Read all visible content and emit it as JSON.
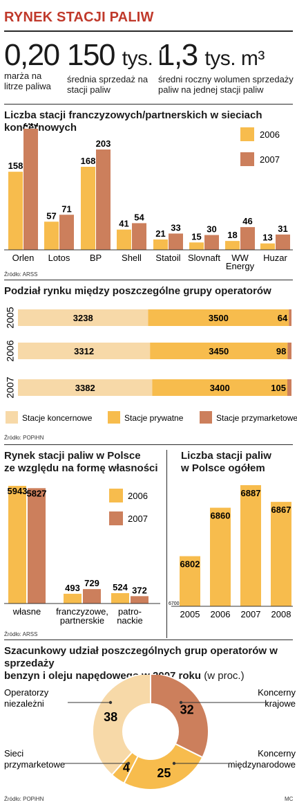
{
  "header": {
    "title": "RYNEK STACJI PALIW"
  },
  "stats": [
    {
      "value": "0,20",
      "unit": "",
      "desc_lines": [
        "marża na",
        "litrze paliwa"
      ]
    },
    {
      "value": "150",
      "unit": "tys. l",
      "desc_lines": [
        "średnia sprzedaż na",
        "stacji paliw"
      ]
    },
    {
      "value": "1,3",
      "unit": "tys. m³",
      "desc_lines": [
        "średni roczny wolumen sprzedaży",
        "paliw na jednej stacji paliw"
      ]
    }
  ],
  "colors": {
    "light": "#f7d9a8",
    "yellow": "#f7bc4d",
    "brown": "#cc7f5c",
    "title_red": "#c0392b"
  },
  "chart_data": [
    {
      "type": "bar",
      "title": "Liczba stacji franczyzowych/partnerskich w sieciach koncernowych",
      "categories": [
        "Orlen",
        "Lotos",
        "BP",
        "Shell",
        "Statoil",
        "Slovnaft",
        "WW Energy",
        "Huzar"
      ],
      "category_lines": [
        [
          "Orlen"
        ],
        [
          "Lotos"
        ],
        [
          "BP"
        ],
        [
          "Shell"
        ],
        [
          "Statoil"
        ],
        [
          "Slovnaft"
        ],
        [
          "WW",
          "Energy"
        ],
        [
          "Huzar"
        ]
      ],
      "series": [
        {
          "name": "2006",
          "values": [
            158,
            57,
            168,
            41,
            21,
            15,
            18,
            13
          ]
        },
        {
          "name": "2007",
          "values": [
            245,
            71,
            203,
            54,
            33,
            30,
            46,
            31
          ]
        }
      ],
      "ylim": [
        0,
        245
      ],
      "legend": "top-right",
      "source": "Źródło: ARSS"
    },
    {
      "type": "bar",
      "orientation": "horizontal-stacked",
      "title": "Podział rynku między poszczególne grupy operatorów",
      "categories": [
        "2005",
        "2006",
        "2007"
      ],
      "series": [
        {
          "name": "Stacje koncernowe",
          "values": [
            3238,
            3312,
            3382
          ]
        },
        {
          "name": "Stacje prywatne",
          "values": [
            3500,
            3450,
            3400
          ]
        },
        {
          "name": "Stacje przymarketowe",
          "values": [
            64,
            98,
            105
          ]
        }
      ],
      "legend": "bottom",
      "source": "Źródło: POPiHN"
    },
    {
      "type": "bar",
      "title": "Rynek stacji paliw w Polsce ze względu na formę własności",
      "title_lines": [
        "Rynek stacji paliw w Polsce",
        "ze względu na formę własności"
      ],
      "categories": [
        "własne",
        "franczyzowe, partnerskie",
        "patro-nackie"
      ],
      "category_lines": [
        [
          "własne"
        ],
        [
          "franczyzowe,",
          "partnerskie"
        ],
        [
          "patro-",
          "nackie"
        ]
      ],
      "series": [
        {
          "name": "2006",
          "values": [
            5943,
            493,
            524
          ]
        },
        {
          "name": "2007",
          "values": [
            5827,
            729,
            372
          ]
        }
      ],
      "ylim": [
        0,
        5943
      ],
      "legend": "right",
      "source": "Źródło: ARSS"
    },
    {
      "type": "bar",
      "title": "Liczba stacji paliw w Polsce ogółem",
      "title_lines": [
        "Liczba stacji paliw",
        "w Polsce ogółem"
      ],
      "categories": [
        "2005",
        "2006",
        "2007",
        "2008"
      ],
      "values": [
        6802,
        6860,
        6887,
        6867
      ],
      "ylim": [
        6700,
        6887
      ],
      "y_baseline_label": "6700"
    },
    {
      "type": "pie",
      "style": "donut",
      "title": "Szacunkowy udział poszczególnych grup operatorów w sprzedaży benzyn i oleju napędowego w 2007 roku",
      "title_suffix": "(w proc.)",
      "title_lines": [
        "Szacunkowy udział poszczególnych grup operatorów w sprzedaży",
        "benzyn i oleju napędowego w 2007 roku"
      ],
      "slices": [
        {
          "name": "Koncerny krajowe",
          "name_lines": [
            "Koncerny",
            "krajowe"
          ],
          "value": 32
        },
        {
          "name": "Koncerny międzynarodowe",
          "name_lines": [
            "Koncerny",
            "międzynarodowe"
          ],
          "value": 25
        },
        {
          "name": "Sieci przymarketowe",
          "name_lines": [
            "Sieci",
            "przymarketowe"
          ],
          "value": 4
        },
        {
          "name": "Operatorzy niezależni",
          "name_lines": [
            "Operatorzy",
            "niezależni"
          ],
          "value": 38
        }
      ],
      "source": "Źródło: POPiHN"
    }
  ],
  "footer": {
    "credit": "MC"
  }
}
